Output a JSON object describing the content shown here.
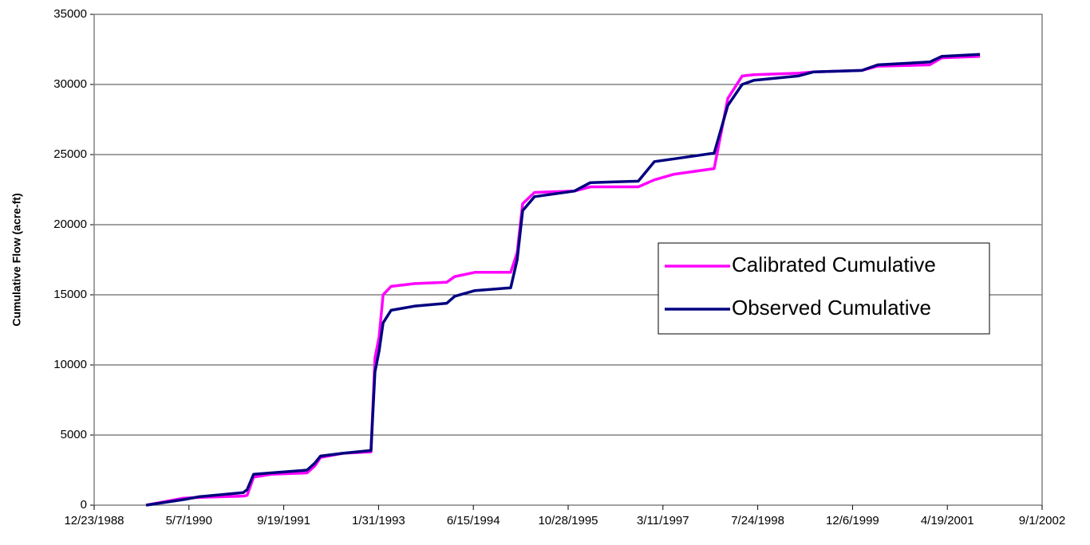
{
  "chart_data": {
    "type": "line",
    "y_label": "Cumulative Flow (acre-ft)",
    "x": [
      "9/23/1989",
      "4/8/1990",
      "7/1/1990",
      "2/17/1991",
      "3/10/1991",
      "4/13/1991",
      "7/14/1991",
      "1/20/1992",
      "3/1/1992",
      "3/31/1992",
      "7/27/1992",
      "12/22/1992",
      "1/12/1993",
      "2/3/1993",
      "2/24/1993",
      "4/7/1993",
      "8/11/1993",
      "1/26/1994",
      "3/9/1994",
      "6/23/1994",
      "12/29/1994",
      "2/1/1995",
      "3/2/1995",
      "5/4/1995",
      "11/30/1995",
      "2/22/1996",
      "11/1/1996",
      "1/25/1997",
      "5/10/1997",
      "12/6/1997",
      "2/16/1998",
      "5/3/1998",
      "7/5/1998",
      "2/21/1999",
      "5/16/1999",
      "1/24/2000",
      "4/17/2000",
      "1/16/2001",
      "3/20/2001",
      "10/8/2001"
    ],
    "series": [
      {
        "name": "Calibrated Cumulative",
        "color": "#ff00ff",
        "values": [
          0,
          500,
          550,
          650,
          700,
          2000,
          2200,
          2300,
          2800,
          3400,
          3700,
          3800,
          10500,
          12000,
          15000,
          15600,
          15800,
          15900,
          16300,
          16600,
          16600,
          18000,
          21500,
          22300,
          22400,
          22700,
          22700,
          23200,
          23600,
          24000,
          29000,
          30600,
          30700,
          30800,
          30900,
          31000,
          31300,
          31400,
          31900,
          32000
        ]
      },
      {
        "name": "Observed Cumulative",
        "color": "#000080",
        "values": [
          0,
          400,
          600,
          900,
          1100,
          2200,
          2300,
          2500,
          3000,
          3500,
          3700,
          3900,
          9500,
          11000,
          13000,
          13900,
          14200,
          14400,
          14900,
          15300,
          15500,
          17500,
          21000,
          22000,
          22400,
          23000,
          23100,
          24500,
          24700,
          25100,
          28500,
          30000,
          30300,
          30600,
          30900,
          31000,
          31400,
          31600,
          32000,
          32150
        ]
      }
    ],
    "xlim": [
      "12/23/1988",
      "9/1/2002"
    ],
    "xticks": [
      "12/23/1988",
      "5/7/1990",
      "9/19/1991",
      "1/31/1993",
      "6/15/1994",
      "10/28/1995",
      "3/11/1997",
      "7/24/1998",
      "12/6/1999",
      "4/19/2001",
      "9/1/2002"
    ],
    "ylim": [
      0,
      35000
    ],
    "yticks": [
      0,
      5000,
      10000,
      15000,
      20000,
      25000,
      30000,
      35000
    ],
    "grid": true,
    "legend": "right"
  }
}
